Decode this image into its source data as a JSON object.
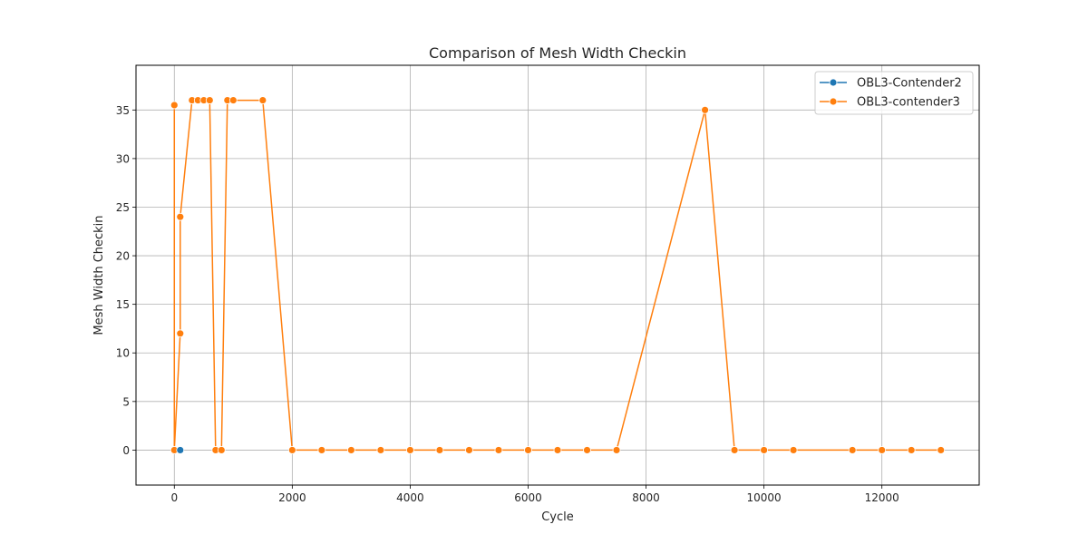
{
  "chart_data": {
    "type": "line",
    "title": "Comparison of Mesh Width Checkin",
    "xlabel": "Cycle",
    "ylabel": "Mesh Width Checkin",
    "xlim": [
      -650,
      13650
    ],
    "ylim": [
      -3.6,
      39.6
    ],
    "xticks": [
      0,
      2000,
      4000,
      6000,
      8000,
      10000,
      12000
    ],
    "yticks": [
      0,
      5,
      10,
      15,
      20,
      25,
      30,
      35
    ],
    "grid": true,
    "legend_position": "top-right",
    "colors": {
      "series_1": "#1f77b4",
      "series_2": "#ff7f0e",
      "grid": "#b0b0b0",
      "axis": "#000000"
    },
    "series": [
      {
        "name": "OBL3-Contender2",
        "points": [
          [
            100,
            0
          ]
        ]
      },
      {
        "name": "OBL3-contender3",
        "points": [
          [
            0,
            35.5
          ],
          [
            0,
            0
          ],
          [
            100,
            12
          ],
          [
            100,
            24
          ],
          [
            300,
            36
          ],
          [
            400,
            36
          ],
          [
            500,
            36
          ],
          [
            600,
            36
          ],
          [
            700,
            0
          ],
          [
            800,
            0
          ],
          [
            900,
            36
          ],
          [
            1000,
            36
          ],
          [
            1500,
            36
          ],
          [
            2000,
            0
          ],
          [
            2500,
            0
          ],
          [
            3000,
            0
          ],
          [
            3500,
            0
          ],
          [
            4000,
            0
          ],
          [
            4500,
            0
          ],
          [
            5000,
            0
          ],
          [
            5500,
            0
          ],
          [
            6000,
            0
          ],
          [
            6500,
            0
          ],
          [
            7000,
            0
          ],
          [
            7500,
            0
          ],
          [
            9000,
            35
          ],
          [
            9500,
            0
          ],
          [
            10000,
            0
          ],
          [
            10500,
            0
          ],
          [
            11500,
            0
          ],
          [
            12000,
            0
          ],
          [
            12500,
            0
          ],
          [
            13000,
            0
          ]
        ]
      }
    ]
  }
}
